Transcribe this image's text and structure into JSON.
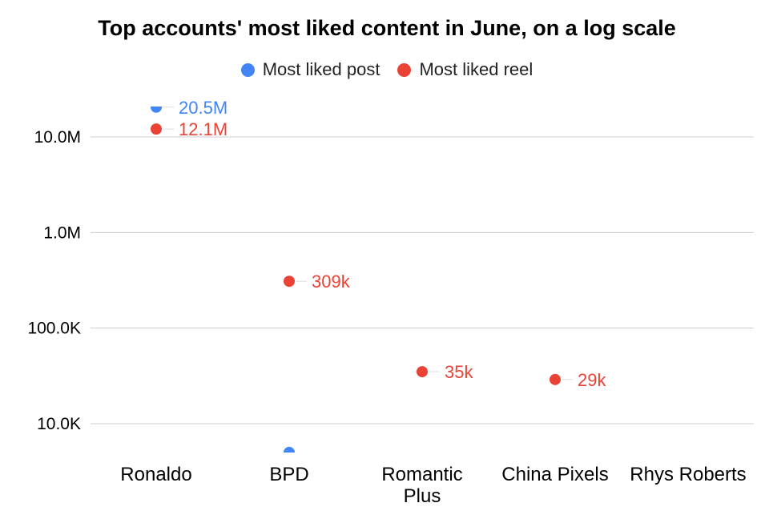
{
  "chart_data": {
    "type": "scatter",
    "title": "Top accounts' most liked content in June, on a log scale",
    "categories": [
      "Ronaldo",
      "BPD",
      "Romantic Plus",
      "China Pixels",
      "Rhys Roberts"
    ],
    "y_scale": "log",
    "ylim": [
      5000,
      20500000
    ],
    "y_ticks": [
      10000,
      100000,
      1000000,
      10000000
    ],
    "y_tick_labels": [
      "10.0K",
      "100.0K",
      "1.0M",
      "10.0M"
    ],
    "grid": true,
    "legend_position": "top",
    "series": [
      {
        "name": "Most liked post",
        "color": "#4285f4",
        "values": [
          20500000,
          5000,
          null,
          null,
          null
        ],
        "labels": [
          "20.5M",
          "",
          "",
          "",
          ""
        ]
      },
      {
        "name": "Most liked reel",
        "color": "#ea4335",
        "values": [
          12100000,
          309000,
          35000,
          29000,
          null
        ],
        "labels": [
          "12.1M",
          "309k",
          "35k",
          "29k",
          ""
        ]
      }
    ]
  }
}
